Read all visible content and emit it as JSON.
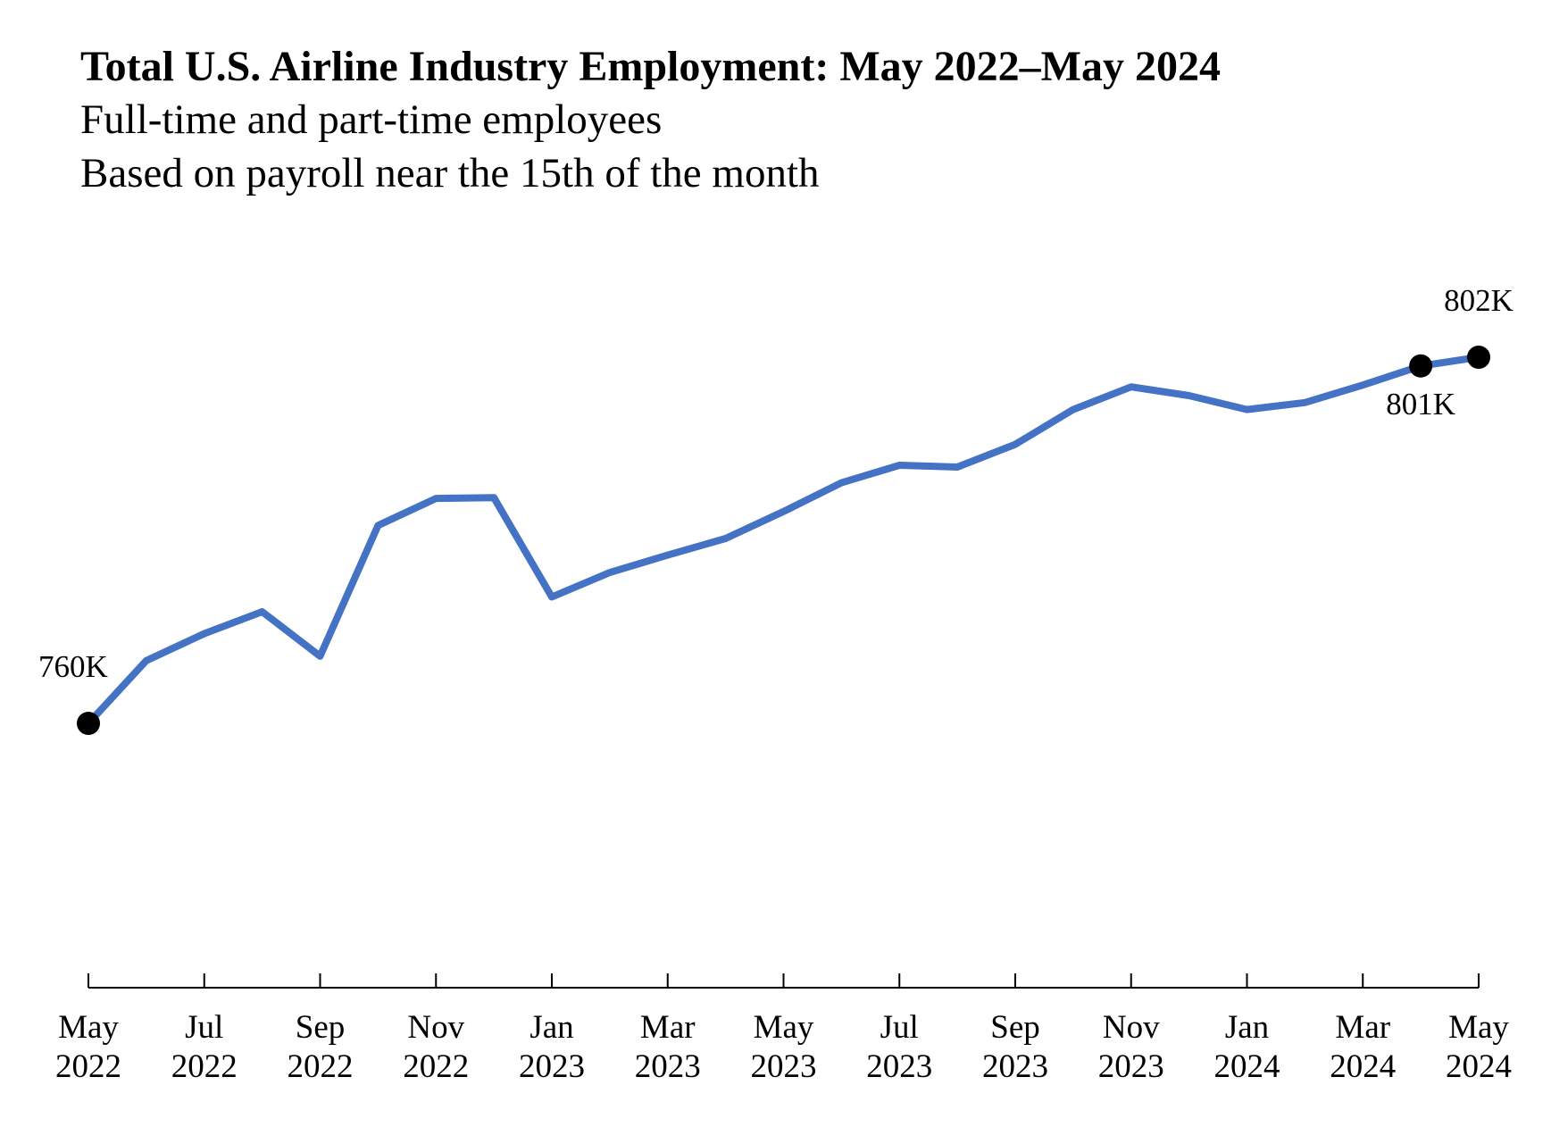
{
  "chart_data": {
    "type": "line",
    "title": "Total U.S. Airline Industry Employment: May 2022–May 2024",
    "subtitle_lines": [
      "Full-time and part-time employees",
      "Based on payroll near the 15th of the month"
    ],
    "xlabel": "",
    "ylabel": "",
    "grid": false,
    "legend": "none",
    "ylim": [
      740,
      810
    ],
    "x": [
      "May 2022",
      "Jun 2022",
      "Jul 2022",
      "Aug 2022",
      "Sep 2022",
      "Oct 2022",
      "Nov 2022",
      "Dec 2022",
      "Jan 2023",
      "Feb 2023",
      "Mar 2023",
      "Apr 2023",
      "May 2023",
      "Jun 2023",
      "Jul 2023",
      "Aug 2023",
      "Sep 2023",
      "Oct 2023",
      "Nov 2023",
      "Dec 2023",
      "Jan 2024",
      "Feb 2024",
      "Mar 2024",
      "Apr 2024",
      "May 2024"
    ],
    "series": [
      {
        "values": [
          760,
          767.2,
          770.3,
          772.8,
          767.7,
          782.7,
          785.8,
          785.9,
          774.5,
          777.3,
          779.3,
          781.2,
          784.3,
          787.6,
          789.6,
          789.4,
          792.0,
          796.0,
          798.6,
          797.6,
          796.0,
          796.8,
          798.8,
          801,
          802
        ],
        "color": "#4472C4"
      }
    ],
    "x_ticks": [
      {
        "index": 0,
        "line1": "May",
        "line2": "2022"
      },
      {
        "index": 2,
        "line1": "Jul",
        "line2": "2022"
      },
      {
        "index": 4,
        "line1": "Sep",
        "line2": "2022"
      },
      {
        "index": 6,
        "line1": "Nov",
        "line2": "2022"
      },
      {
        "index": 8,
        "line1": "Jan",
        "line2": "2023"
      },
      {
        "index": 10,
        "line1": "Mar",
        "line2": "2023"
      },
      {
        "index": 12,
        "line1": "May",
        "line2": "2023"
      },
      {
        "index": 14,
        "line1": "Jul",
        "line2": "2023"
      },
      {
        "index": 16,
        "line1": "Sep",
        "line2": "2023"
      },
      {
        "index": 18,
        "line1": "Nov",
        "line2": "2023"
      },
      {
        "index": 20,
        "line1": "Jan",
        "line2": "2024"
      },
      {
        "index": 22,
        "line1": "Mar",
        "line2": "2024"
      },
      {
        "index": 24,
        "line1": "May",
        "line2": "2024"
      }
    ],
    "annotations": [
      {
        "index": 0,
        "label": "760K",
        "placement": "above-left"
      },
      {
        "index": 23,
        "label": "801K",
        "placement": "below"
      },
      {
        "index": 24,
        "label": "802K",
        "placement": "above"
      }
    ],
    "marker_color": "#000000",
    "axis_color": "#000000"
  }
}
